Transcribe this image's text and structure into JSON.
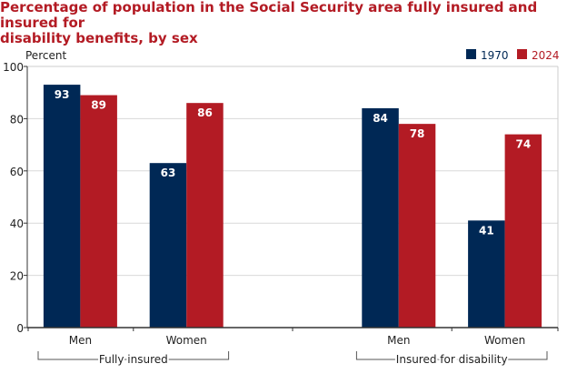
{
  "chart_data": {
    "type": "bar",
    "title": "Percentage of population in the Social Security area fully insured and insured for disability benefits, by sex",
    "ylabel": "Percent",
    "ylim": [
      0,
      100
    ],
    "yticks": [
      "0",
      "20",
      "40",
      "60",
      "80",
      "100"
    ],
    "grid": true,
    "legend_position": "top-right",
    "categories": [
      "Men",
      "Women",
      "",
      "Men",
      "Women"
    ],
    "groups": [
      {
        "label": "Fully insured",
        "categories": [
          0,
          1
        ]
      },
      {
        "label": "Insured for disability",
        "categories": [
          3,
          4
        ]
      }
    ],
    "series": [
      {
        "name": "1970",
        "color": "#002855",
        "values": [
          93,
          63,
          null,
          84,
          41
        ]
      },
      {
        "name": "2024",
        "color": "#b31b24",
        "values": [
          89,
          86,
          null,
          78,
          74
        ]
      }
    ]
  }
}
